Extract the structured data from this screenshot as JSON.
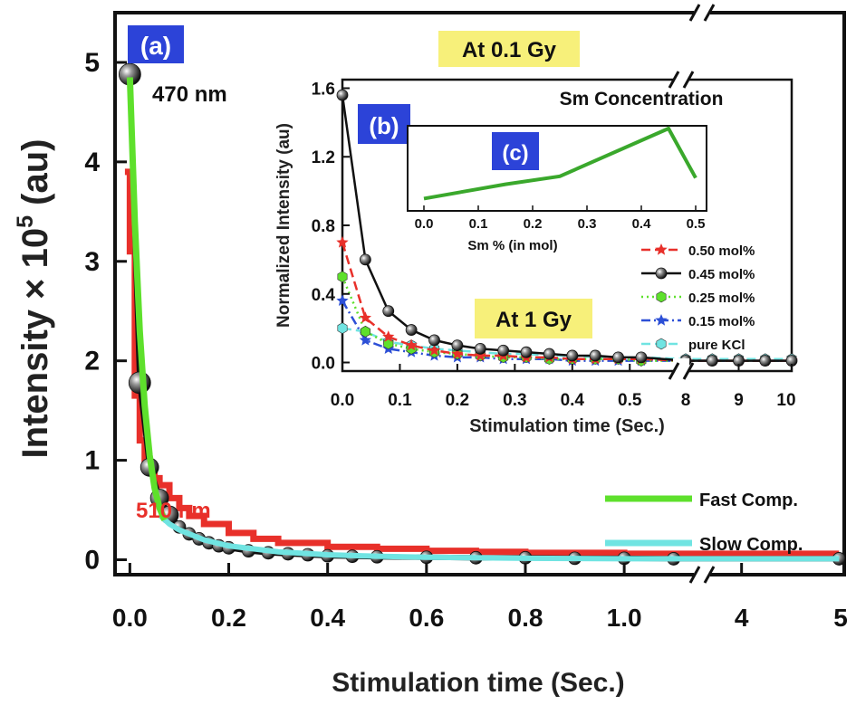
{
  "chart_data": [
    {
      "id": "main",
      "type": "line",
      "panel_label": "(a)",
      "annotation": "At 0.1 Gy",
      "xlabel": "Stimulation time (Sec.)",
      "ylabel_prefix": "Intensity × 10",
      "ylabel_sup": "5",
      "ylabel_suffix": " (au)",
      "x_axis_break": true,
      "xlim_left": [
        -0.03,
        1.15
      ],
      "xlim_right": [
        3.65,
        5.0
      ],
      "ylim": [
        -0.15,
        5.5
      ],
      "xticks_left": [
        "0.0",
        "0.2",
        "0.4",
        "0.6",
        "0.8",
        "1.0"
      ],
      "xticks_right": [
        "4",
        "5"
      ],
      "yticks": [
        "0",
        "1",
        "2",
        "3",
        "4",
        "5"
      ],
      "series_labels": [
        {
          "text": "470 nm",
          "color": "#111111"
        },
        {
          "text": "510 nm",
          "color": "#e8302a"
        }
      ],
      "series": [
        {
          "name": "470 nm",
          "color": "#111111",
          "style": "balls",
          "x": [
            0.0,
            0.02,
            0.04,
            0.06,
            0.08,
            0.1,
            0.12,
            0.14,
            0.16,
            0.18,
            0.2,
            0.24,
            0.28,
            0.32,
            0.36,
            0.4,
            0.45,
            0.5,
            0.6,
            0.7,
            0.8,
            0.9,
            1.0,
            1.1,
            4.95
          ],
          "y": [
            4.88,
            1.78,
            0.93,
            0.62,
            0.45,
            0.33,
            0.26,
            0.21,
            0.17,
            0.14,
            0.12,
            0.09,
            0.07,
            0.06,
            0.05,
            0.04,
            0.035,
            0.03,
            0.025,
            0.02,
            0.02,
            0.015,
            0.015,
            0.01,
            0.01
          ]
        },
        {
          "name": "510 nm",
          "color": "#e8302a",
          "style": "step",
          "x": [
            -0.01,
            0.0,
            0.01,
            0.02,
            0.03,
            0.04,
            0.05,
            0.06,
            0.08,
            0.1,
            0.12,
            0.15,
            0.2,
            0.25,
            0.3,
            0.4,
            0.5,
            0.6,
            0.7,
            0.8,
            0.9,
            1.0,
            1.1,
            4.95
          ],
          "y": [
            3.9,
            3.1,
            1.65,
            1.2,
            1.0,
            0.9,
            0.82,
            0.75,
            0.62,
            0.52,
            0.44,
            0.36,
            0.27,
            0.21,
            0.17,
            0.13,
            0.11,
            0.09,
            0.08,
            0.07,
            0.07,
            0.06,
            0.06,
            0.06
          ]
        },
        {
          "name": "Fast Comp.",
          "color": "#5ee02c",
          "style": "line",
          "x": [
            0.0,
            0.01,
            0.02,
            0.03,
            0.04,
            0.05,
            0.06,
            0.07
          ],
          "y": [
            4.85,
            3.4,
            2.3,
            1.55,
            1.05,
            0.72,
            0.52,
            0.4
          ]
        },
        {
          "name": "Slow Comp.",
          "color": "#70e4e2",
          "style": "line",
          "x": [
            0.06,
            0.08,
            0.1,
            0.15,
            0.2,
            0.3,
            0.4,
            0.5,
            0.6,
            0.8,
            1.0,
            1.1,
            4.95
          ],
          "y": [
            0.45,
            0.36,
            0.3,
            0.2,
            0.14,
            0.08,
            0.05,
            0.035,
            0.025,
            0.015,
            0.01,
            0.01,
            0.01
          ]
        }
      ],
      "legend": [
        {
          "label": "Fast Comp.",
          "color": "#5ee02c"
        },
        {
          "label": "Slow Comp.",
          "color": "#70e4e2"
        }
      ]
    },
    {
      "id": "inset_b",
      "type": "line",
      "panel_label": "(b)",
      "annotation": "At 1 Gy",
      "xlabel": "Stimulation time (Sec.)",
      "ylabel": "Normalized Intensity (au)",
      "x_axis_break": true,
      "xlim_left": [
        0.0,
        0.58
      ],
      "xlim_right": [
        8.0,
        10.0
      ],
      "ylim": [
        -0.05,
        1.65
      ],
      "xticks_left": [
        "0.0",
        "0.1",
        "0.2",
        "0.3",
        "0.4",
        "0.5"
      ],
      "xticks_right": [
        "8",
        "9",
        "10"
      ],
      "yticks": [
        "0.0",
        "0.4",
        "0.8",
        "1.2",
        "1.6"
      ],
      "series": [
        {
          "name": "0.50 mol%",
          "color": "#e8302a",
          "style": "dash",
          "marker": "star",
          "x": [
            0.0,
            0.04,
            0.08,
            0.12,
            0.16,
            0.2,
            0.24,
            0.28,
            0.32,
            0.36,
            0.4,
            0.44,
            0.48,
            0.52,
            8.0,
            8.5,
            9.0,
            9.5,
            10.0
          ],
          "y": [
            0.7,
            0.26,
            0.15,
            0.1,
            0.07,
            0.05,
            0.04,
            0.04,
            0.03,
            0.03,
            0.02,
            0.02,
            0.02,
            0.02,
            0.01,
            0.01,
            0.01,
            0.01,
            0.01
          ]
        },
        {
          "name": "0.45 mol%",
          "color": "#111111",
          "style": "solid",
          "marker": "ball",
          "x": [
            0.0,
            0.04,
            0.08,
            0.12,
            0.16,
            0.2,
            0.24,
            0.28,
            0.32,
            0.36,
            0.4,
            0.44,
            0.48,
            0.52,
            8.0,
            8.5,
            9.0,
            9.5,
            10.0
          ],
          "y": [
            1.56,
            0.6,
            0.3,
            0.19,
            0.13,
            0.1,
            0.08,
            0.07,
            0.06,
            0.05,
            0.04,
            0.04,
            0.03,
            0.03,
            0.01,
            0.01,
            0.01,
            0.01,
            0.01
          ]
        },
        {
          "name": "0.25 mol%",
          "color": "#5ee02c",
          "style": "dot",
          "marker": "hexagon",
          "x": [
            0.0,
            0.04,
            0.08,
            0.12,
            0.16,
            0.2,
            0.24,
            0.28,
            0.32,
            0.36,
            0.4,
            0.44,
            0.48,
            0.52,
            8.0,
            8.5,
            9.0,
            9.5,
            10.0
          ],
          "y": [
            0.5,
            0.18,
            0.11,
            0.08,
            0.06,
            0.05,
            0.04,
            0.03,
            0.03,
            0.02,
            0.02,
            0.02,
            0.02,
            0.01,
            0.01,
            0.01,
            0.01,
            0.01,
            0.01
          ]
        },
        {
          "name": "0.15 mol%",
          "color": "#2c4fd6",
          "style": "dashdot",
          "marker": "star",
          "x": [
            0.0,
            0.04,
            0.08,
            0.12,
            0.16,
            0.2,
            0.24,
            0.28,
            0.32,
            0.36,
            0.4,
            0.44,
            0.48,
            0.52,
            8.0,
            8.5,
            9.0,
            9.5,
            10.0
          ],
          "y": [
            0.36,
            0.13,
            0.08,
            0.06,
            0.04,
            0.03,
            0.03,
            0.02,
            0.02,
            0.02,
            0.01,
            0.01,
            0.01,
            0.01,
            0.01,
            0.01,
            0.01,
            0.01,
            0.01
          ]
        },
        {
          "name": "pure KCl",
          "color": "#70e4e2",
          "style": "dash",
          "marker": "hexagon",
          "x": [
            0.0,
            0.04,
            0.08,
            0.12,
            0.16,
            0.2,
            0.24,
            0.28,
            0.32,
            0.36,
            0.4,
            0.44,
            0.48,
            0.52,
            8.0,
            8.5,
            9.0,
            9.5,
            10.0
          ],
          "y": [
            0.2,
            0.18,
            0.12,
            0.1,
            0.08,
            0.07,
            0.06,
            0.05,
            0.05,
            0.04,
            0.04,
            0.03,
            0.03,
            0.03,
            0.02,
            0.02,
            0.02,
            0.02,
            0.02
          ]
        }
      ]
    },
    {
      "id": "inset_c",
      "type": "line",
      "panel_label": "(c)",
      "title": "Sm Concentration",
      "xlabel": "Sm % (in mol)",
      "xlim": [
        -0.03,
        0.52
      ],
      "ylim": [
        0.0,
        1.0
      ],
      "xticks": [
        "0.0",
        "0.1",
        "0.2",
        "0.3",
        "0.4",
        "0.5"
      ],
      "series": [
        {
          "name": "",
          "color": "#3aa82c",
          "x": [
            0.0,
            0.15,
            0.25,
            0.45,
            0.5
          ],
          "y": [
            0.12,
            0.3,
            0.4,
            1.0,
            0.38
          ]
        }
      ]
    }
  ]
}
